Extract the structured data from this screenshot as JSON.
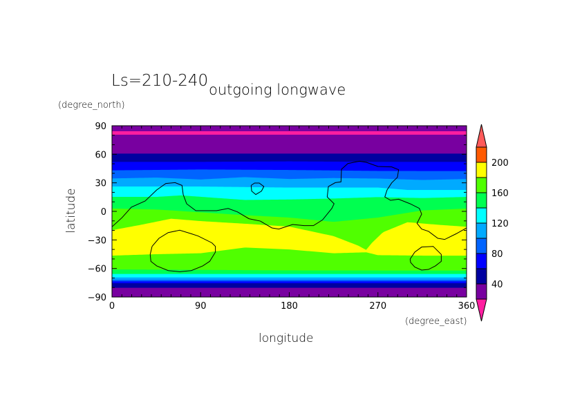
{
  "chart_data": {
    "type": "heatmap",
    "subtitle": "Ls=210-240",
    "title": "outgoing longwave",
    "xlabel": "longitude",
    "ylabel": "latitude",
    "xunits": "(degree_east)",
    "yunits": "(degree_north)",
    "xlim": [
      0,
      360
    ],
    "ylim": [
      -90,
      90
    ],
    "xticks": [
      0,
      90,
      180,
      270,
      360
    ],
    "yticks": [
      90,
      60,
      30,
      0,
      -30,
      -60,
      -90
    ],
    "xtick_labels": [
      "0",
      "90",
      "180",
      "270",
      "360"
    ],
    "ytick_labels": [
      "90",
      "60",
      "30",
      "0",
      "−30",
      "−60",
      "−90"
    ],
    "colorbar": {
      "levels": [
        20,
        40,
        60,
        80,
        100,
        120,
        140,
        160,
        180,
        200,
        220
      ],
      "labels": [
        "40",
        "80",
        "120",
        "160",
        "200"
      ],
      "label_values": [
        40,
        80,
        120,
        160,
        200
      ],
      "under_color": "#ff1ea0",
      "over_color": "#ff5a5a",
      "colors": [
        "#7800a0",
        "#0000a0",
        "#0000ff",
        "#0064ff",
        "#00aaff",
        "#00ffff",
        "#00ff50",
        "#50ff00",
        "#ffff00",
        "#ff5a00"
      ]
    },
    "base_color": "#7800a0",
    "regions": [
      {
        "range": "<20",
        "color": "#ff1ea0",
        "lon": [
          0,
          360
        ],
        "top": [
          84.2,
          84.2
        ],
        "bottom": [
          80.6,
          80.6
        ]
      },
      {
        "range": "40-60",
        "color": "#0000a0",
        "lon": [
          0,
          360
        ],
        "top": [
          60.7,
          60.7
        ]
      },
      {
        "range": "60-80",
        "color": "#0000ff",
        "lon": [
          0,
          90,
          180,
          270,
          360
        ],
        "top": [
          52,
          52,
          52.5,
          52,
          52
        ]
      },
      {
        "range": "80-100",
        "color": "#0064ff",
        "lon": [
          0,
          90,
          180,
          270,
          315,
          360
        ],
        "top": [
          43.1,
          44,
          43.5,
          42.5,
          42.4,
          42.4
        ]
      },
      {
        "range": "100-120",
        "color": "#00aaff",
        "lon": [
          0,
          45,
          90,
          135,
          180,
          225,
          270,
          315,
          360
        ],
        "top": [
          34.6,
          35.5,
          33.5,
          36,
          34,
          35,
          34.5,
          33,
          34
        ]
      },
      {
        "range": "120-140",
        "color": "#00ffff",
        "lon": [
          0,
          90,
          180,
          270,
          300,
          360
        ],
        "top": [
          26.1,
          26.1,
          25,
          25,
          22.5,
          22.5
        ]
      },
      {
        "range": "140-160",
        "color": "#00ff50",
        "lon": [
          0,
          45,
          70,
          135,
          180,
          225,
          270,
          315,
          360
        ],
        "top": [
          15.2,
          15.2,
          16.8,
          12,
          12.5,
          13.5,
          15,
          14,
          15.2
        ]
      },
      {
        "range": "160-180",
        "color": "#50ff00",
        "lon": [
          0,
          45,
          90,
          135,
          180,
          225,
          270,
          315,
          360
        ],
        "top": [
          3,
          2,
          -1,
          -4,
          -6.5,
          -11,
          -6.5,
          1,
          3
        ]
      },
      {
        "range": "180-200",
        "color": "#ffff00",
        "lon": [
          0,
          30,
          60,
          90,
          135,
          180,
          225,
          250,
          258,
          264,
          275,
          300,
          330,
          360
        ],
        "top": [
          -19.8,
          -14,
          -7.7,
          -10.2,
          -13,
          -16,
          -26,
          -36,
          -40.5,
          -33,
          -22,
          -11.4,
          -14,
          -16.2
        ]
      },
      {
        "range": "160-180",
        "color": "#50ff00",
        "lon": [
          0,
          45,
          90,
          135,
          180,
          225,
          258,
          270,
          315,
          360
        ],
        "top": [
          -46.5,
          -45,
          -44,
          -38,
          -40,
          -44,
          -43,
          -46,
          -46.5,
          -46.5
        ]
      },
      {
        "range": "140-160",
        "color": "#00ff50",
        "lon": [
          0,
          180,
          360
        ],
        "top": [
          -61,
          -62,
          -62.2
        ]
      },
      {
        "range": "120-140",
        "color": "#00ffff",
        "lon": [
          0,
          360
        ],
        "top": [
          -65.8,
          -65.8
        ]
      },
      {
        "range": "100-120",
        "color": "#00aaff",
        "lon": [
          0,
          360
        ],
        "top": [
          -69.4,
          -69.4
        ]
      },
      {
        "range": "80-100",
        "color": "#0064ff",
        "lon": [
          0,
          360
        ],
        "top": [
          -71.9,
          -71.9
        ]
      },
      {
        "range": "60-80",
        "color": "#0000ff",
        "lon": [
          0,
          360
        ],
        "top": [
          -73.5,
          -73.5
        ]
      },
      {
        "range": "40-60",
        "color": "#0000a0",
        "lon": [
          0,
          360
        ],
        "top": [
          -75.5,
          -75.5
        ]
      },
      {
        "range": "20-40",
        "color": "#7800a0",
        "lon": [
          0,
          360
        ],
        "top": [
          -80.3,
          -80.3
        ]
      }
    ],
    "contours": [
      [
        [
          0,
          -16.2
        ],
        [
          10.3,
          -6.5
        ],
        [
          19.7,
          4.4
        ],
        [
          33.7,
          10.9
        ],
        [
          45.4,
          22.5
        ],
        [
          54.7,
          29.3
        ],
        [
          64.1,
          30.2
        ],
        [
          71.1,
          27.3
        ],
        [
          72.3,
          17.7
        ],
        [
          75.8,
          8
        ],
        [
          85.1,
          0.7
        ],
        [
          106.2,
          0.7
        ],
        [
          117.9,
          3.1
        ],
        [
          127.3,
          -0.5
        ],
        [
          139,
          -7.7
        ],
        [
          150.6,
          -10.2
        ],
        [
          162.4,
          -17.4
        ],
        [
          169.4,
          -18.6
        ],
        [
          183.4,
          -13.8
        ],
        [
          195.1,
          -15
        ],
        [
          204.5,
          -15
        ],
        [
          213.8,
          -8.9
        ],
        [
          223.2,
          3.1
        ],
        [
          225.5,
          8
        ],
        [
          218.5,
          15.2
        ],
        [
          219.7,
          26.1
        ],
        [
          226.7,
          30.2
        ],
        [
          232.5,
          31
        ],
        [
          233,
          44.3
        ],
        [
          239.5,
          50.3
        ],
        [
          251.3,
          52.7
        ],
        [
          258.3,
          51.5
        ],
        [
          270,
          47.2
        ],
        [
          284,
          46.7
        ],
        [
          291,
          43.8
        ],
        [
          289.8,
          35.8
        ],
        [
          284,
          30
        ],
        [
          279.3,
          22.5
        ],
        [
          277,
          15.2
        ],
        [
          282.8,
          11.6
        ],
        [
          291,
          12.8
        ],
        [
          302.7,
          8
        ],
        [
          312.1,
          3.1
        ],
        [
          314.4,
          -2.9
        ],
        [
          309.7,
          -12.6
        ],
        [
          314.4,
          -18.6
        ],
        [
          321.4,
          -21
        ],
        [
          330.8,
          -28.3
        ],
        [
          337.8,
          -29.5
        ],
        [
          349.5,
          -23.5
        ],
        [
          360,
          -17.4
        ]
      ],
      [
        [
          141.3,
          27.3
        ],
        [
          144.8,
          29.8
        ],
        [
          149.5,
          29.8
        ],
        [
          154.2,
          26.1
        ],
        [
          151.8,
          21.3
        ],
        [
          146,
          17.7
        ],
        [
          141.8,
          21.3
        ],
        [
          141.3,
          27.3
        ]
      ],
      [
        [
          40.7,
          -36.8
        ],
        [
          47.7,
          -28.3
        ],
        [
          57.1,
          -22.3
        ],
        [
          68.8,
          -19.8
        ],
        [
          80.5,
          -23.5
        ],
        [
          87.5,
          -25.9
        ],
        [
          101.5,
          -33.1
        ],
        [
          105,
          -36.8
        ],
        [
          105,
          -42.8
        ],
        [
          99.2,
          -52.5
        ],
        [
          92.2,
          -57.3
        ],
        [
          80.5,
          -62.2
        ],
        [
          68.8,
          -63.4
        ],
        [
          57.1,
          -62.2
        ],
        [
          45.4,
          -57.3
        ],
        [
          39.5,
          -52.5
        ],
        [
          38.8,
          -45.2
        ],
        [
          40.7,
          -36.8
        ]
      ],
      [
        [
          302.7,
          -50.1
        ],
        [
          307.4,
          -42.8
        ],
        [
          314.4,
          -37.5
        ],
        [
          326.1,
          -36.8
        ],
        [
          334.3,
          -45.2
        ],
        [
          334.3,
          -52.5
        ],
        [
          328.4,
          -57.3
        ],
        [
          321.4,
          -61
        ],
        [
          314.4,
          -61.7
        ],
        [
          307.4,
          -58.5
        ],
        [
          303.2,
          -53.7
        ],
        [
          302.7,
          -50.1
        ]
      ]
    ]
  }
}
